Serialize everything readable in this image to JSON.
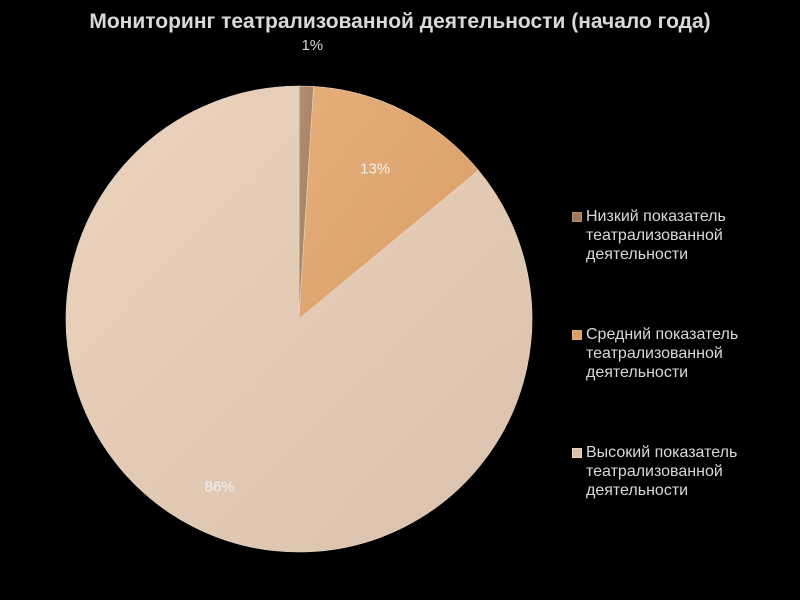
{
  "title": "Мониторинг театрализованной деятельности (начало года)",
  "chart_data": {
    "type": "pie",
    "title": "Мониторинг театрализованной деятельности (начало года)",
    "legend_position": "right",
    "slices": [
      {
        "label": "Низкий показатель театрализованной деятельности",
        "value": 1,
        "display": "1%",
        "color": "#a27a5b",
        "color_light": "#b48f70"
      },
      {
        "label": "Средний показатель театрализованной деятельности",
        "value": 13,
        "display": "13%",
        "color": "#d99e6a",
        "color_light": "#e5ae79"
      },
      {
        "label": "Высокий показатель театрализованной деятельности",
        "value": 86,
        "display": "86%",
        "color": "#d9c1ad",
        "color_light": "#ecd3bd"
      }
    ],
    "legend": [
      [
        "Низкий показатель",
        "театрализованной",
        "деятельности"
      ],
      [
        "Средний показатель",
        "театрализованной",
        "деятельности"
      ],
      [
        "Высокий показатель",
        "театрализованной",
        "деятельности"
      ]
    ]
  }
}
